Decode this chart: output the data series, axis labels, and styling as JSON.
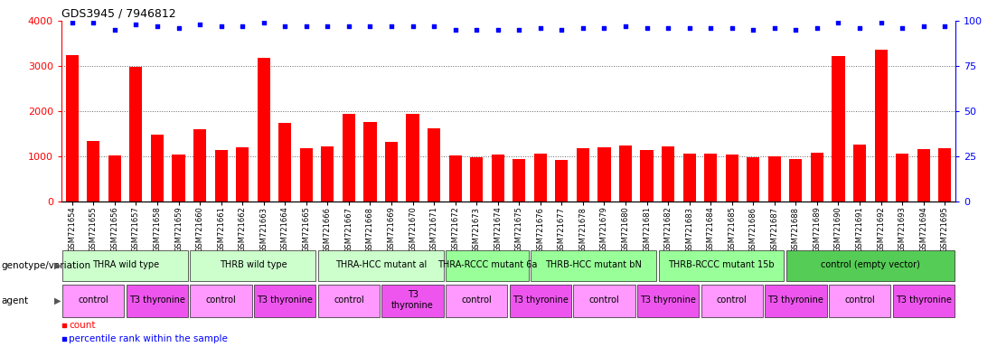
{
  "title": "GDS3945 / 7946812",
  "samples": [
    "GSM721654",
    "GSM721655",
    "GSM721656",
    "GSM721657",
    "GSM721658",
    "GSM721659",
    "GSM721660",
    "GSM721661",
    "GSM721662",
    "GSM721663",
    "GSM721664",
    "GSM721665",
    "GSM721666",
    "GSM721667",
    "GSM721668",
    "GSM721669",
    "GSM721670",
    "GSM721671",
    "GSM721672",
    "GSM721673",
    "GSM721674",
    "GSM721675",
    "GSM721676",
    "GSM721677",
    "GSM721678",
    "GSM721679",
    "GSM721680",
    "GSM721681",
    "GSM721682",
    "GSM721683",
    "GSM721684",
    "GSM721685",
    "GSM721686",
    "GSM721687",
    "GSM721688",
    "GSM721689",
    "GSM721690",
    "GSM721691",
    "GSM721692",
    "GSM721693",
    "GSM721694",
    "GSM721695"
  ],
  "counts": [
    3250,
    1340,
    1020,
    2980,
    1490,
    1050,
    1600,
    1150,
    1210,
    3190,
    1750,
    1190,
    1220,
    1940,
    1760,
    1330,
    1940,
    1620,
    1020,
    980,
    1040,
    940,
    1060,
    920,
    1180,
    1210,
    1240,
    1150,
    1230,
    1060,
    1060,
    1040,
    980,
    1000,
    950,
    1090,
    3230,
    1270,
    3370,
    1060,
    1170,
    1190
  ],
  "percentile_ranks": [
    99,
    99,
    95,
    98,
    97,
    96,
    98,
    97,
    97,
    99,
    97,
    97,
    97,
    97,
    97,
    97,
    97,
    97,
    95,
    95,
    95,
    95,
    96,
    95,
    96,
    96,
    97,
    96,
    96,
    96,
    96,
    96,
    95,
    96,
    95,
    96,
    99,
    96,
    99,
    96,
    97,
    97
  ],
  "bar_color": "#ff0000",
  "dot_color": "#0000ff",
  "ylim_left": [
    0,
    4000
  ],
  "ylim_right": [
    0,
    100
  ],
  "yticks_left": [
    0,
    1000,
    2000,
    3000,
    4000
  ],
  "yticks_right": [
    0,
    25,
    50,
    75,
    100
  ],
  "genotype_groups": [
    {
      "label": "THRA wild type",
      "start": 0,
      "end": 5,
      "color": "#ccffcc"
    },
    {
      "label": "THRB wild type",
      "start": 6,
      "end": 11,
      "color": "#ccffcc"
    },
    {
      "label": "THRA-HCC mutant al",
      "start": 12,
      "end": 17,
      "color": "#ccffcc"
    },
    {
      "label": "THRA-RCCC mutant 6a",
      "start": 18,
      "end": 21,
      "color": "#99ff99"
    },
    {
      "label": "THRB-HCC mutant bN",
      "start": 22,
      "end": 27,
      "color": "#99ff99"
    },
    {
      "label": "THRB-RCCC mutant 15b",
      "start": 28,
      "end": 33,
      "color": "#99ff99"
    },
    {
      "label": "control (empty vector)",
      "start": 34,
      "end": 41,
      "color": "#55cc55"
    }
  ],
  "agent_groups": [
    {
      "label": "control",
      "start": 0,
      "end": 2,
      "color": "#ff99ff"
    },
    {
      "label": "T3 thyronine",
      "start": 3,
      "end": 5,
      "color": "#ee55ee"
    },
    {
      "label": "control",
      "start": 6,
      "end": 8,
      "color": "#ff99ff"
    },
    {
      "label": "T3 thyronine",
      "start": 9,
      "end": 11,
      "color": "#ee55ee"
    },
    {
      "label": "control",
      "start": 12,
      "end": 14,
      "color": "#ff99ff"
    },
    {
      "label": "T3\nthyronine",
      "start": 15,
      "end": 17,
      "color": "#ee55ee"
    },
    {
      "label": "control",
      "start": 18,
      "end": 20,
      "color": "#ff99ff"
    },
    {
      "label": "T3 thyronine",
      "start": 21,
      "end": 23,
      "color": "#ee55ee"
    },
    {
      "label": "control",
      "start": 24,
      "end": 26,
      "color": "#ff99ff"
    },
    {
      "label": "T3 thyronine",
      "start": 27,
      "end": 29,
      "color": "#ee55ee"
    },
    {
      "label": "control",
      "start": 30,
      "end": 32,
      "color": "#ff99ff"
    },
    {
      "label": "T3 thyronine",
      "start": 33,
      "end": 35,
      "color": "#ee55ee"
    },
    {
      "label": "control",
      "start": 36,
      "end": 38,
      "color": "#ff99ff"
    },
    {
      "label": "T3 thyronine",
      "start": 39,
      "end": 41,
      "color": "#ee55ee"
    }
  ],
  "legend_count_color": "#ff0000",
  "legend_pct_color": "#0000ff",
  "background_color": "#ffffff",
  "plot_bg_color": "#ffffff",
  "tick_label_size": 6,
  "title_fontsize": 9,
  "group_label_fontsize": 7,
  "row_label_fontsize": 7.5
}
